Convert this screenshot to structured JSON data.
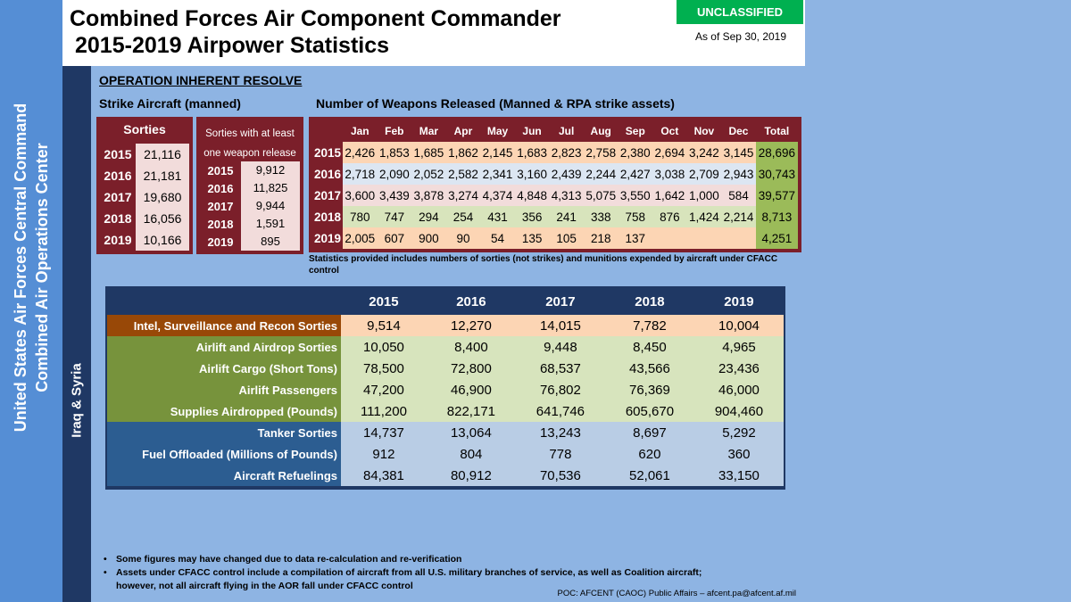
{
  "header": {
    "title_line1": "Combined Forces Air Component Commander",
    "title_line2": "2015-2019 Airpower Statistics",
    "classification": "UNCLASSIFIED",
    "as_of": "As of Sep 30, 2019"
  },
  "sidebar": {
    "line1": "United States Air Forces Central Command",
    "line2": "Combined Air Operations Center",
    "region": "Iraq & Syria"
  },
  "operation": "OPERATION INHERENT RESOLVE",
  "strike_title": "Strike Aircraft (manned)",
  "weapons_title": "Number of Weapons Released (Manned & RPA strike assets)",
  "sorties": {
    "header": "Sorties",
    "rows": [
      {
        "year": "2015",
        "value": "21,116"
      },
      {
        "year": "2016",
        "value": "21,181"
      },
      {
        "year": "2017",
        "value": "19,680"
      },
      {
        "year": "2018",
        "value": "16,056"
      },
      {
        "year": "2019",
        "value": "10,166"
      }
    ]
  },
  "sorties_weapon": {
    "header_line1": "Sorties with at least",
    "header_line2": "one weapon release",
    "rows": [
      {
        "year": "2015",
        "value": "9,912"
      },
      {
        "year": "2016",
        "value": "11,825"
      },
      {
        "year": "2017",
        "value": "9,944"
      },
      {
        "year": "2018",
        "value": "1,591"
      },
      {
        "year": "2019",
        "value": "895"
      }
    ]
  },
  "weapons": {
    "columns": [
      "Jan",
      "Feb",
      "Mar",
      "Apr",
      "May",
      "Jun",
      "Jul",
      "Aug",
      "Sep",
      "Oct",
      "Nov",
      "Dec",
      "Total"
    ],
    "rows": [
      {
        "year": "2015",
        "values": [
          "2,426",
          "1,853",
          "1,685",
          "1,862",
          "2,145",
          "1,683",
          "2,823",
          "2,758",
          "2,380",
          "2,694",
          "3,242",
          "3,145"
        ],
        "total": "28,696"
      },
      {
        "year": "2016",
        "values": [
          "2,718",
          "2,090",
          "2,052",
          "2,582",
          "2,341",
          "3,160",
          "2,439",
          "2,244",
          "2,427",
          "3,038",
          "2,709",
          "2,943"
        ],
        "total": "30,743"
      },
      {
        "year": "2017",
        "values": [
          "3,600",
          "3,439",
          "3,878",
          "3,274",
          "4,374",
          "4,848",
          "4,313",
          "5,075",
          "3,550",
          "1,642",
          "1,000",
          "584"
        ],
        "total": "39,577"
      },
      {
        "year": "2018",
        "values": [
          "780",
          "747",
          "294",
          "254",
          "431",
          "356",
          "241",
          "338",
          "758",
          "876",
          "1,424",
          "2,214"
        ],
        "total": "8,713"
      },
      {
        "year": "2019",
        "values": [
          "2,005",
          "607",
          "900",
          "90",
          "54",
          "135",
          "105",
          "218",
          "137",
          "",
          "",
          ""
        ],
        "total": "4,251"
      }
    ]
  },
  "note": "Statistics provided includes numbers of sorties (not strikes) and munitions expended by aircraft under CFACC control",
  "stats": {
    "years": [
      "2015",
      "2016",
      "2017",
      "2018",
      "2019"
    ],
    "rows": [
      {
        "label": "Intel, Surveillance and Recon Sorties",
        "values": [
          "9,514",
          "12,270",
          "14,015",
          "7,782",
          "10,004"
        ]
      },
      {
        "label": "Airlift and Airdrop Sorties",
        "values": [
          "10,050",
          "8,400",
          "9,448",
          "8,450",
          "4,965"
        ]
      },
      {
        "label": "Airlift Cargo (Short Tons)",
        "values": [
          "78,500",
          "72,800",
          "68,537",
          "43,566",
          "23,436"
        ]
      },
      {
        "label": "Airlift Passengers",
        "values": [
          "47,200",
          "46,900",
          "76,802",
          "76,369",
          "46,000"
        ]
      },
      {
        "label": "Supplies Airdropped (Pounds)",
        "values": [
          "111,200",
          "822,171",
          "641,746",
          "605,670",
          "904,460"
        ]
      },
      {
        "label": "Tanker Sorties",
        "values": [
          "14,737",
          "13,064",
          "13,243",
          "8,697",
          "5,292"
        ]
      },
      {
        "label": "Fuel Offloaded (Millions of Pounds)",
        "values": [
          "912",
          "804",
          "778",
          "620",
          "360"
        ]
      },
      {
        "label": "Aircraft Refuelings",
        "values": [
          "84,381",
          "80,912",
          "70,536",
          "52,061",
          "33,150"
        ]
      }
    ]
  },
  "footer": {
    "bullet1": "Some figures may have changed due to data re-calculation and re-verification",
    "bullet2_line1": "Assets under CFACC control include a compilation of aircraft from all U.S.  military branches of service, as well as Coalition aircraft;",
    "bullet2_line2": "however, not all aircraft flying in the AOR fall under CFACC control",
    "poc": "POC:  AFCENT (CAOC) Public Affairs – afcent.pa@afcent.af.mil"
  }
}
